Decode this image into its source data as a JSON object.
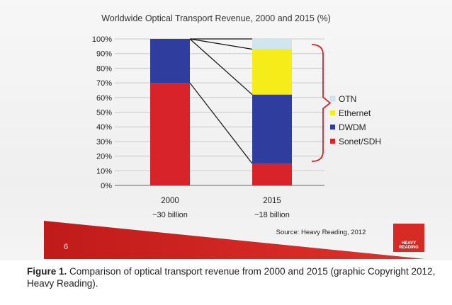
{
  "chart_data": {
    "type": "bar",
    "stacked": true,
    "title": "Worldwide Optical Transport Revenue, 2000 and 2015 (%)",
    "categories": [
      "2000",
      "2015"
    ],
    "category_sublabels": [
      "~30 billion",
      "~18 billion"
    ],
    "yticks": [
      "0%",
      "10%",
      "20%",
      "30%",
      "40%",
      "50%",
      "60%",
      "70%",
      "80%",
      "90%",
      "100%"
    ],
    "ylim": [
      0,
      100
    ],
    "series": [
      {
        "name": "Sonet/SDH",
        "color": "#d8232a",
        "values": [
          70,
          15
        ]
      },
      {
        "name": "DWDM",
        "color": "#2e3d9e",
        "values": [
          30,
          47
        ]
      },
      {
        "name": "Ethernet",
        "color": "#f5ec1a",
        "values": [
          0,
          31
        ]
      },
      {
        "name": "OTN",
        "color": "#cfe6ef",
        "values": [
          0,
          7
        ]
      }
    ],
    "legend_order": [
      "OTN",
      "Ethernet",
      "DWDM",
      "Sonet/SDH"
    ],
    "legend_placement": "right",
    "grid": true,
    "source": "Source: Heavy Reading, 2012"
  },
  "footer": {
    "page_number": "6",
    "logo_text": "HEAVY READING"
  },
  "caption": {
    "label": "Figure 1.",
    "text": " Comparison of optical transport revenue from 2000 and 2015 (graphic Copyright 2012, Heavy Reading)."
  }
}
